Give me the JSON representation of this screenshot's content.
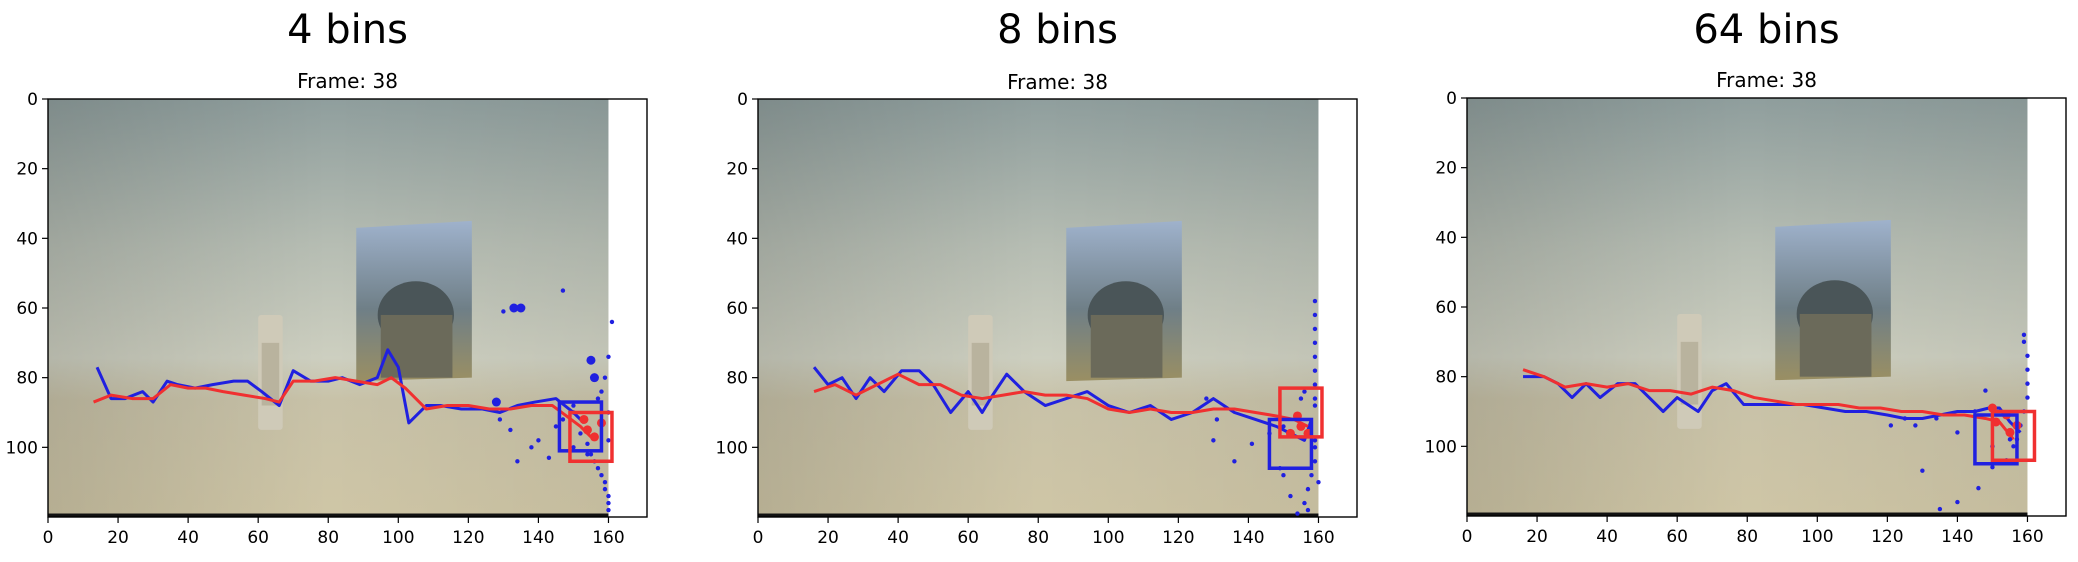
{
  "chart_data": [
    {
      "type": "scatter",
      "title": "4 bins",
      "subtitle": "Frame: 38",
      "xlim": [
        0,
        171
      ],
      "ylim": [
        120,
        0
      ],
      "xticks": [
        0,
        20,
        40,
        60,
        80,
        100,
        120,
        140,
        160
      ],
      "yticks": [
        0,
        20,
        40,
        60,
        80,
        100
      ],
      "image_extent_x": [
        0,
        160
      ],
      "grid": false,
      "colors": {
        "tracked": "#2020e0",
        "reference": "#f03030"
      },
      "series": [
        {
          "color": "#2020e0",
          "type": "line",
          "x": [
            14,
            18,
            22,
            27,
            30,
            34,
            37,
            42,
            47,
            53,
            57,
            61,
            66,
            70,
            75,
            80,
            84,
            89,
            94,
            97,
            100,
            103,
            108,
            112,
            118,
            124,
            129,
            134,
            139,
            145,
            150,
            153
          ],
          "y": [
            77,
            86,
            86,
            84,
            87,
            81,
            82,
            83,
            82,
            81,
            81,
            84,
            88,
            78,
            81,
            81,
            80,
            82,
            80,
            72,
            77,
            93,
            88,
            88,
            89,
            89,
            90,
            88,
            87,
            86,
            90,
            93
          ]
        },
        {
          "color": "#f03030",
          "type": "line",
          "x": [
            13,
            18,
            24,
            30,
            35,
            40,
            45,
            50,
            56,
            62,
            66,
            70,
            76,
            82,
            88,
            94,
            98,
            102,
            108,
            114,
            120,
            126,
            132,
            138,
            144,
            148,
            152,
            155
          ],
          "y": [
            87,
            85,
            86,
            86,
            82,
            83,
            83,
            84,
            85,
            86,
            87,
            81,
            81,
            80,
            81,
            82,
            80,
            83,
            89,
            88,
            88,
            89,
            89,
            88,
            88,
            91,
            94,
            97
          ]
        },
        {
          "color": "#2020e0",
          "type": "scatter",
          "x": [
            147,
            150,
            152,
            154,
            155,
            156,
            157,
            158,
            159,
            159,
            160,
            160,
            160,
            161,
            160,
            159,
            158,
            157,
            150,
            147,
            145,
            140,
            138,
            134,
            132,
            130,
            129,
            128,
            143,
            160,
            160,
            154,
            150,
            153
          ],
          "y": [
            55,
            88,
            96,
            99,
            102,
            104,
            106,
            108,
            110,
            112,
            114,
            116,
            118,
            64,
            74,
            80,
            84,
            86,
            90,
            92,
            94,
            98,
            100,
            104,
            95,
            61,
            92,
            87,
            103,
            90,
            98,
            102,
            100,
            92
          ]
        },
        {
          "color": "#2020e0",
          "type": "scatter",
          "x": [
            128,
            133,
            135,
            155,
            156
          ],
          "y": [
            87,
            60,
            60,
            75,
            80
          ]
        },
        {
          "color": "#f03030",
          "type": "scatter",
          "x": [
            156,
            154,
            153,
            158
          ],
          "y": [
            97,
            95,
            92,
            93
          ]
        }
      ],
      "bboxes": [
        {
          "color": "#2020e0",
          "x0": 146,
          "y0": 87,
          "x1": 158,
          "y1": 101
        },
        {
          "color": "#f03030",
          "x0": 149,
          "y0": 90,
          "x1": 161,
          "y1": 104
        }
      ]
    },
    {
      "type": "scatter",
      "title": "8 bins",
      "subtitle": "Frame: 38",
      "xlim": [
        0,
        171
      ],
      "ylim": [
        120,
        0
      ],
      "xticks": [
        0,
        20,
        40,
        60,
        80,
        100,
        120,
        140,
        160
      ],
      "yticks": [
        0,
        20,
        40,
        60,
        80,
        100
      ],
      "image_extent_x": [
        0,
        160
      ],
      "grid": false,
      "series": [
        {
          "color": "#2020e0",
          "type": "line",
          "x": [
            16,
            20,
            24,
            28,
            32,
            36,
            41,
            46,
            50,
            55,
            60,
            64,
            67,
            71,
            76,
            82,
            88,
            94,
            100,
            106,
            112,
            118,
            124,
            130,
            136,
            142,
            148,
            152,
            156,
            158
          ],
          "y": [
            77,
            82,
            80,
            86,
            80,
            84,
            78,
            78,
            82,
            90,
            84,
            90,
            85,
            79,
            84,
            88,
            86,
            84,
            88,
            90,
            88,
            92,
            90,
            86,
            90,
            92,
            94,
            96,
            98,
            92
          ]
        },
        {
          "color": "#f03030",
          "type": "line",
          "x": [
            16,
            22,
            28,
            34,
            40,
            46,
            52,
            58,
            64,
            70,
            76,
            82,
            88,
            94,
            100,
            106,
            112,
            118,
            124,
            130,
            136,
            142,
            148,
            153,
            157
          ],
          "y": [
            84,
            82,
            85,
            82,
            79,
            82,
            82,
            85,
            86,
            85,
            84,
            85,
            85,
            86,
            89,
            90,
            89,
            90,
            90,
            89,
            89,
            90,
            91,
            92,
            94
          ]
        },
        {
          "color": "#2020e0",
          "type": "scatter",
          "x": [
            159,
            159,
            159,
            159,
            159,
            159,
            159,
            159,
            159,
            159,
            159,
            158,
            157,
            156,
            154,
            152,
            150,
            149,
            146,
            141,
            136,
            130,
            128,
            131,
            150,
            155,
            156,
            159,
            160,
            157
          ],
          "y": [
            58,
            62,
            66,
            70,
            74,
            78,
            82,
            86,
            88,
            98,
            104,
            108,
            112,
            116,
            119,
            114,
            108,
            106,
            96,
            99,
            104,
            98,
            86,
            92,
            94,
            86,
            84,
            100,
            110,
            118
          ]
        },
        {
          "color": "#f03030",
          "type": "scatter",
          "x": [
            155,
            154,
            152,
            157
          ],
          "y": [
            94,
            91,
            96,
            96
          ]
        }
      ],
      "bboxes": [
        {
          "color": "#2020e0",
          "x0": 146,
          "y0": 92,
          "x1": 158,
          "y1": 106
        },
        {
          "color": "#f03030",
          "x0": 149,
          "y0": 83,
          "x1": 161,
          "y1": 97
        }
      ]
    },
    {
      "type": "scatter",
      "title": "64 bins",
      "subtitle": "Frame: 38",
      "xlim": [
        0,
        171
      ],
      "ylim": [
        120,
        0
      ],
      "xticks": [
        0,
        20,
        40,
        60,
        80,
        100,
        120,
        140,
        160
      ],
      "yticks": [
        0,
        20,
        40,
        60,
        80,
        100
      ],
      "image_extent_x": [
        0,
        160
      ],
      "grid": false,
      "series": [
        {
          "color": "#2020e0",
          "type": "line",
          "x": [
            16,
            22,
            26,
            30,
            34,
            38,
            43,
            48,
            52,
            56,
            60,
            66,
            70,
            74,
            79,
            84,
            90,
            96,
            102,
            108,
            114,
            120,
            125,
            130,
            135,
            140,
            145,
            149,
            152,
            155,
            158
          ],
          "y": [
            80,
            80,
            82,
            86,
            82,
            86,
            82,
            82,
            86,
            90,
            86,
            90,
            84,
            82,
            88,
            88,
            88,
            88,
            89,
            90,
            90,
            91,
            92,
            92,
            91,
            90,
            90,
            89,
            89,
            93,
            96
          ]
        },
        {
          "color": "#f03030",
          "type": "line",
          "x": [
            16,
            22,
            28,
            34,
            40,
            46,
            52,
            58,
            64,
            70,
            76,
            82,
            88,
            94,
            100,
            106,
            112,
            118,
            124,
            130,
            136,
            142,
            148,
            152,
            156
          ],
          "y": [
            78,
            80,
            83,
            82,
            83,
            82,
            84,
            84,
            85,
            83,
            84,
            86,
            87,
            88,
            88,
            88,
            89,
            89,
            90,
            90,
            91,
            91,
            92,
            93,
            98
          ]
        },
        {
          "color": "#2020e0",
          "type": "scatter",
          "x": [
            159,
            159,
            160,
            160,
            160,
            160,
            159,
            158,
            157,
            156,
            154,
            150,
            146,
            140,
            135,
            130,
            125,
            121,
            128,
            134,
            140,
            145,
            150,
            155,
            148
          ],
          "y": [
            68,
            70,
            74,
            78,
            82,
            86,
            90,
            94,
            98,
            100,
            104,
            106,
            112,
            116,
            118,
            107,
            92,
            94,
            94,
            92,
            96,
            90,
            100,
            98,
            84
          ]
        },
        {
          "color": "#f03030",
          "type": "scatter",
          "x": [
            155,
            151,
            154,
            157,
            150
          ],
          "y": [
            96,
            93,
            91,
            94,
            89
          ]
        }
      ],
      "bboxes": [
        {
          "color": "#2020e0",
          "x0": 145,
          "y0": 91,
          "x1": 157,
          "y1": 105
        },
        {
          "color": "#f03030",
          "x0": 150,
          "y0": 90,
          "x1": 162,
          "y1": 104
        }
      ]
    }
  ]
}
